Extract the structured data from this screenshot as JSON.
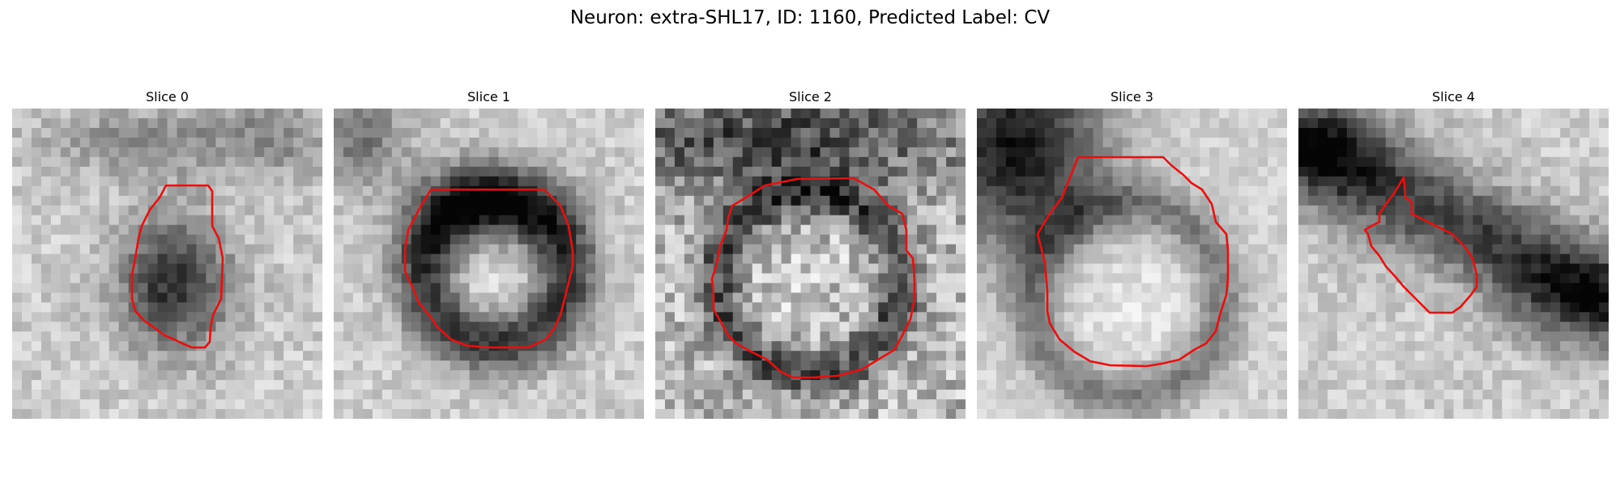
{
  "figure": {
    "title": "Neuron: extra-SHL17, ID: 1160, Predicted Label: CV"
  },
  "panels": [
    {
      "title": "Slice 0"
    },
    {
      "title": "Slice 1"
    },
    {
      "title": "Slice 2"
    },
    {
      "title": "Slice 3"
    },
    {
      "title": "Slice 4"
    }
  ],
  "colors": {
    "contour": "#e8100f",
    "background": "#ffffff"
  }
}
